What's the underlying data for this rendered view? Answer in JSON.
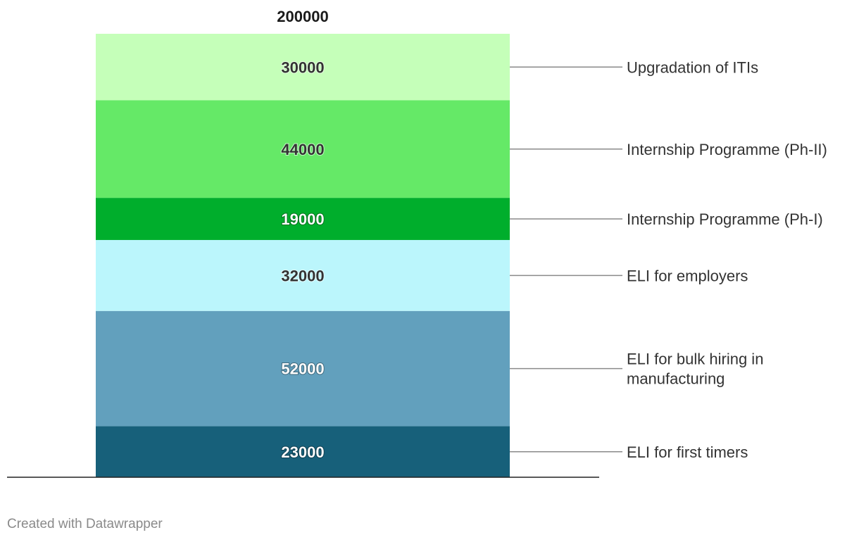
{
  "chart_data": {
    "type": "bar",
    "stacked": true,
    "total": "200000",
    "ylim": [
      0,
      200000
    ],
    "grid": false,
    "legend": "right",
    "series": [
      {
        "name": "ELI for first timers",
        "value": 23000,
        "label": "23000",
        "color": "#17607a",
        "text_color": "#ffffff"
      },
      {
        "name": "ELI for bulk hiring in manufacturing",
        "value": 52000,
        "label": "52000",
        "color": "#62a0bd",
        "text_color": "#ffffff"
      },
      {
        "name": "ELI for employers",
        "value": 32000,
        "label": "32000",
        "color": "#bbf6fc",
        "text_color": "#333333"
      },
      {
        "name": "Internship Programme (Ph-I)",
        "value": 19000,
        "label": "19000",
        "color": "#00ae2c",
        "text_color": "#ffffff"
      },
      {
        "name": "Internship Programme (Ph-II)",
        "value": 44000,
        "label": "44000",
        "color": "#65e967",
        "text_color": "#333333"
      },
      {
        "name": "Upgradation of ITIs",
        "value": 30000,
        "label": "30000",
        "color": "#c5ffb9",
        "text_color": "#333333"
      }
    ]
  },
  "footer": {
    "credit": "Created with Datawrapper"
  }
}
